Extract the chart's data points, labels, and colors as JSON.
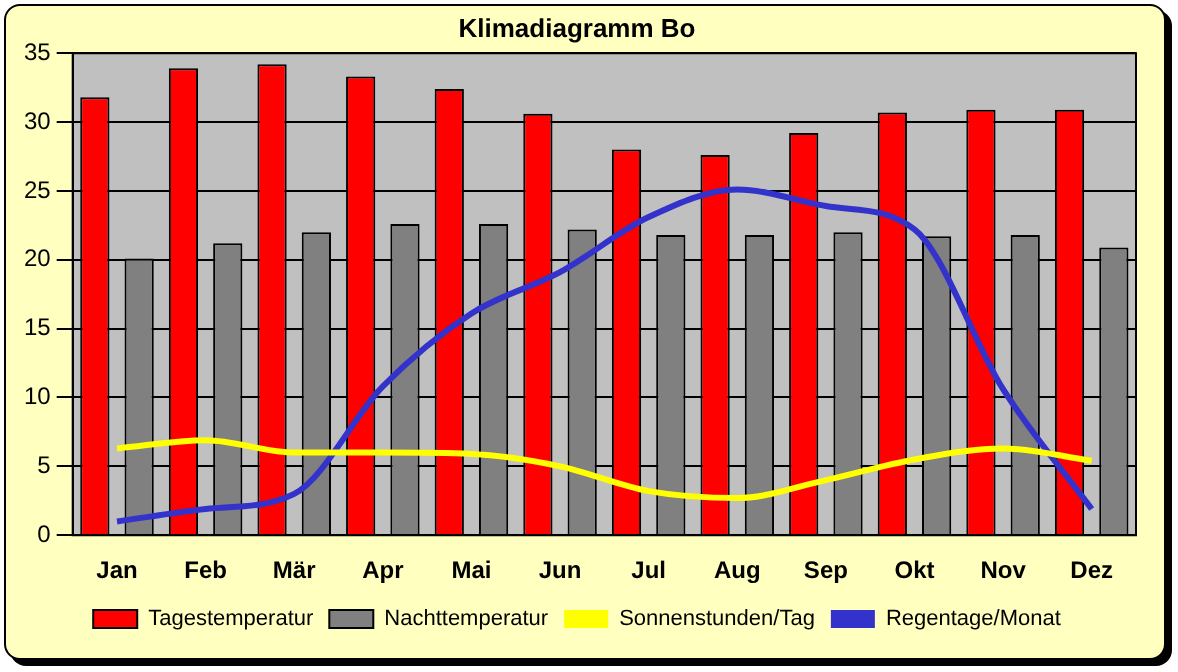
{
  "chart_data": {
    "type": "bar",
    "title": "Klimadiagramm Bo",
    "categories": [
      "Jan",
      "Feb",
      "Mär",
      "Apr",
      "Mai",
      "Jun",
      "Jul",
      "Aug",
      "Sep",
      "Okt",
      "Nov",
      "Dez"
    ],
    "series": [
      {
        "name": "Tagestemperatur",
        "color": "#ff0000",
        "values": [
          31.8,
          33.9,
          34.2,
          33.3,
          32.4,
          30.6,
          28.0,
          27.6,
          29.2,
          30.7,
          30.9,
          30.9
        ]
      },
      {
        "name": "Nachttemperatur",
        "color": "#808080",
        "values": [
          20.1,
          21.2,
          22.0,
          22.6,
          22.6,
          22.2,
          21.8,
          21.8,
          22.0,
          21.7,
          21.8,
          20.9
        ]
      },
      {
        "name": "Sonnenstunden/Tag",
        "type": "line",
        "color": "#ffff00",
        "values": [
          6.3,
          6.9,
          6.0,
          6.0,
          5.9,
          5.0,
          3.2,
          2.7,
          4.0,
          5.5,
          6.3,
          5.4
        ]
      },
      {
        "name": "Regentage/Monat",
        "type": "line",
        "color": "#3333cc",
        "values": [
          1.0,
          1.9,
          3.0,
          10.8,
          16.1,
          19.1,
          23.1,
          25.1,
          23.9,
          22.2,
          10.6,
          1.9
        ]
      }
    ],
    "ylim": [
      0,
      35
    ],
    "yticks": [
      0,
      5,
      10,
      15,
      20,
      25,
      30,
      35
    ],
    "grid": "y",
    "legend": "bottom",
    "marker": "none"
  }
}
